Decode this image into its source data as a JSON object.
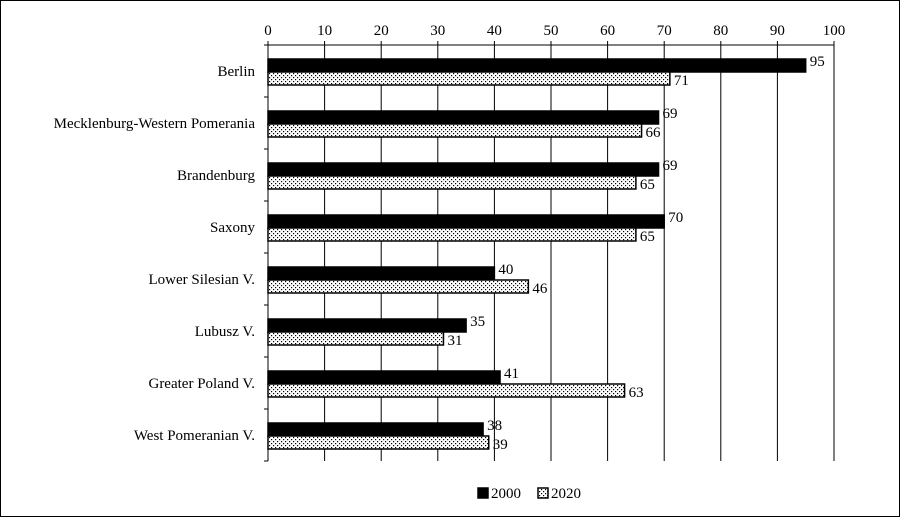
{
  "chart_data": {
    "type": "bar",
    "orientation": "horizontal",
    "categories": [
      "Berlin",
      "Mecklenburg-Western Pomerania",
      "Brandenburg",
      "Saxony",
      "Lower Silesian V.",
      "Lubusz V.",
      "Greater Poland V.",
      "West Pomeranian V."
    ],
    "series": [
      {
        "name": "2000",
        "values": [
          95,
          69,
          69,
          70,
          40,
          35,
          41,
          38
        ],
        "color": "#000000",
        "pattern": "solid"
      },
      {
        "name": "2020",
        "values": [
          71,
          66,
          65,
          65,
          46,
          31,
          63,
          39
        ],
        "color": "#ffffff",
        "pattern": "dotted"
      }
    ],
    "xlim": [
      0,
      100
    ],
    "xticks": [
      "0",
      "10",
      "20",
      "30",
      "40",
      "50",
      "60",
      "70",
      "80",
      "90",
      "100"
    ],
    "x_axis_position": "top",
    "grid": "vertical",
    "legend": "bottom-center",
    "title": "",
    "xlabel": "",
    "ylabel": ""
  }
}
